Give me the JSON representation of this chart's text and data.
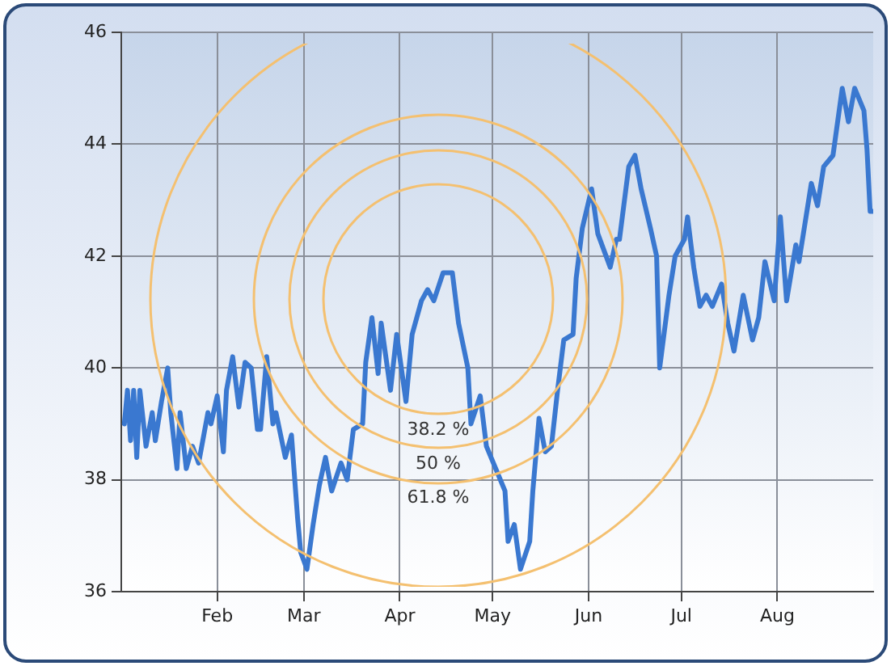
{
  "chart_data": {
    "type": "line",
    "x": [
      "--01-02",
      "--01-03",
      "--01-04",
      "--01-05",
      "--01-06",
      "--01-07",
      "--01-09",
      "--01-11",
      "--01-12",
      "--01-14",
      "--01-16",
      "--01-17",
      "--01-19",
      "--01-20",
      "--01-22",
      "--01-24",
      "--01-26",
      "--01-29",
      "--01-30",
      "--02-01",
      "--02-03",
      "--02-04",
      "--02-06",
      "--02-08",
      "--02-10",
      "--02-12",
      "--02-14",
      "--02-15",
      "--02-17",
      "--02-19",
      "--02-20",
      "--02-23",
      "--02-25",
      "--02-27",
      "--02-28",
      "--03-02",
      "--03-04",
      "--03-06",
      "--03-08",
      "--03-10",
      "--03-13",
      "--03-15",
      "--03-17",
      "--03-20",
      "--03-21",
      "--03-23",
      "--03-25",
      "--03-26",
      "--03-29",
      "--03-31",
      "--04-03",
      "--04-05",
      "--04-08",
      "--04-10",
      "--04-12",
      "--04-15",
      "--04-18",
      "--04-20",
      "--04-23",
      "--04-24",
      "--04-27",
      "--04-29",
      "--05-02",
      "--05-05",
      "--05-06",
      "--05-08",
      "--05-10",
      "--05-13",
      "--05-14",
      "--05-16",
      "--05-18",
      "--05-20",
      "--05-22",
      "--05-24",
      "--05-27",
      "--05-28",
      "--05-30",
      "--06-02",
      "--06-04",
      "--06-06",
      "--06-08",
      "--06-10",
      "--06-11",
      "--06-14",
      "--06-16",
      "--06-18",
      "--06-21",
      "--06-23",
      "--06-24",
      "--06-27",
      "--06-29",
      "--07-02",
      "--07-03",
      "--07-05",
      "--07-07",
      "--07-09",
      "--07-11",
      "--07-14",
      "--07-16",
      "--07-18",
      "--07-21",
      "--07-24",
      "--07-26",
      "--07-28",
      "--07-31",
      "--08-02",
      "--08-04",
      "--08-07",
      "--08-08",
      "--08-12",
      "--08-14",
      "--08-16",
      "--08-19",
      "--08-22",
      "--08-24",
      "--08-26",
      "--08-29",
      "--08-30",
      "--08-31",
      "--09-01"
    ],
    "values": [
      39.0,
      39.6,
      38.7,
      39.6,
      38.4,
      39.6,
      38.6,
      39.2,
      38.7,
      39.4,
      40.0,
      39.2,
      38.2,
      39.2,
      38.2,
      38.6,
      38.3,
      39.2,
      39.0,
      39.5,
      38.5,
      39.6,
      40.2,
      39.3,
      40.1,
      40.0,
      38.9,
      38.9,
      40.2,
      39.0,
      39.2,
      38.4,
      38.8,
      37.3,
      36.7,
      36.4,
      37.2,
      37.9,
      38.4,
      37.8,
      38.3,
      38.0,
      38.9,
      39.0,
      40.1,
      40.9,
      39.9,
      40.8,
      39.6,
      40.6,
      39.4,
      40.6,
      41.2,
      41.4,
      41.2,
      41.7,
      41.7,
      40.8,
      40.0,
      39.0,
      39.5,
      38.6,
      38.2,
      37.8,
      36.9,
      37.2,
      36.4,
      36.9,
      37.8,
      39.1,
      38.5,
      38.6,
      39.6,
      40.5,
      40.6,
      41.6,
      42.5,
      43.2,
      42.4,
      42.1,
      41.8,
      42.3,
      42.3,
      43.6,
      43.8,
      43.2,
      42.5,
      42.0,
      40.0,
      41.3,
      42.0,
      42.3,
      42.7,
      41.8,
      41.1,
      41.3,
      41.1,
      41.5,
      40.8,
      40.3,
      41.3,
      40.5,
      40.9,
      41.9,
      41.2,
      42.7,
      41.2,
      42.2,
      41.9,
      43.3,
      42.9,
      43.6,
      43.8,
      45.0,
      44.4,
      45.0,
      44.6,
      43.9,
      42.8,
      42.8
    ],
    "color": "#3a78d0",
    "xlim": [
      "--01-01",
      "--09-01"
    ],
    "xticks": [
      {
        "value": "--02-01",
        "label": "Feb"
      },
      {
        "value": "--03-01",
        "label": "Mar"
      },
      {
        "value": "--04-01",
        "label": "Apr"
      },
      {
        "value": "--05-01",
        "label": "May"
      },
      {
        "value": "--06-01",
        "label": "Jun"
      },
      {
        "value": "--07-01",
        "label": "Jul"
      },
      {
        "value": "--08-01",
        "label": "Aug"
      }
    ],
    "ylim": [
      36,
      46
    ],
    "yticks": [
      36,
      38,
      40,
      42,
      44,
      46
    ],
    "grid": true,
    "marker": "none",
    "line_style": "solid",
    "annotations": [
      "38.2 %",
      "50 %",
      "61.8 %"
    ]
  }
}
